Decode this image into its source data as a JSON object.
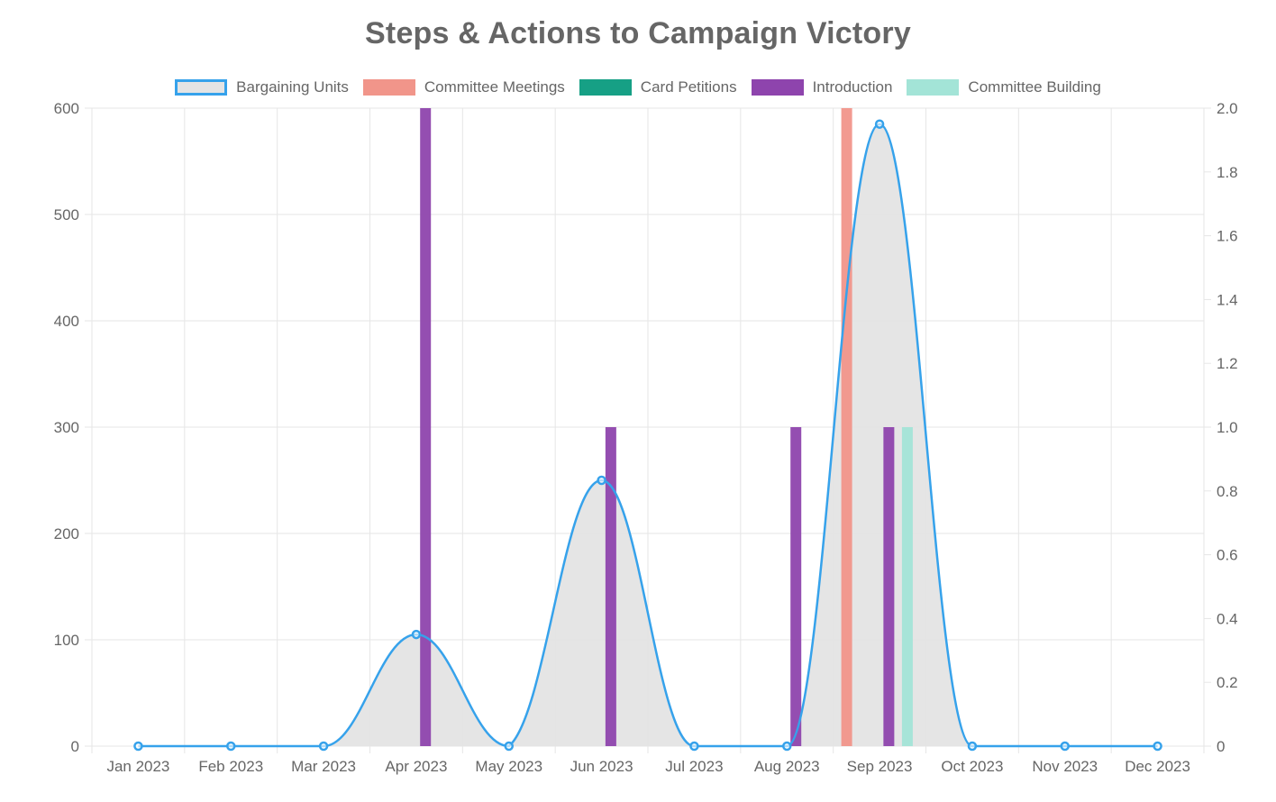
{
  "chart_data": {
    "type": "bar",
    "title": "Steps & Actions to Campaign Victory",
    "categories": [
      "Jan 2023",
      "Feb 2023",
      "Mar 2023",
      "Apr 2023",
      "May 2023",
      "Jun 2023",
      "Jul 2023",
      "Aug 2023",
      "Sep 2023",
      "Oct 2023",
      "Nov 2023",
      "Dec 2023"
    ],
    "y_left": {
      "ticks": [
        "0",
        "100",
        "200",
        "300",
        "400",
        "500",
        "600"
      ],
      "ylim": [
        0,
        600
      ]
    },
    "y_right": {
      "ticks": [
        "0",
        "0.2",
        "0.4",
        "0.6",
        "0.8",
        "1.0",
        "1.2",
        "1.4",
        "1.6",
        "1.8",
        "2.0"
      ],
      "ylim": [
        0,
        2
      ]
    },
    "grid": true,
    "legend_position": "top-center",
    "series": [
      {
        "name": "Bargaining Units",
        "kind": "area-line",
        "axis": "left",
        "color": "#36A2EB",
        "fill": "#E4E4E4",
        "points": [
          {
            "x": "2023-01-01",
            "y": 0
          },
          {
            "x": "2023-02-01",
            "y": 0
          },
          {
            "x": "2023-03-01",
            "y": 0
          },
          {
            "x": "2023-04-01",
            "y": 105
          },
          {
            "x": "2023-05-01",
            "y": 0
          },
          {
            "x": "2023-06-01",
            "y": 250
          },
          {
            "x": "2023-07-01",
            "y": 0
          },
          {
            "x": "2023-08-01",
            "y": 0
          },
          {
            "x": "2023-09-01",
            "y": 585
          },
          {
            "x": "2023-10-01",
            "y": 0
          },
          {
            "x": "2023-11-01",
            "y": 0
          },
          {
            "x": "2023-12-01",
            "y": 0
          }
        ]
      },
      {
        "name": "Committee Meetings",
        "kind": "bar",
        "axis": "right",
        "color": "#F1958A",
        "points": [
          {
            "x": "2023-08-21",
            "y": 2
          }
        ]
      },
      {
        "name": "Card Petitions",
        "kind": "bar",
        "axis": "right",
        "color": "#16A085",
        "points": []
      },
      {
        "name": "Introduction",
        "kind": "bar",
        "axis": "right",
        "color": "#8E44AD",
        "points": [
          {
            "x": "2023-04-04",
            "y": 2
          },
          {
            "x": "2023-06-04",
            "y": 1
          },
          {
            "x": "2023-08-04",
            "y": 1
          },
          {
            "x": "2023-09-04",
            "y": 1
          }
        ]
      },
      {
        "name": "Committee Building",
        "kind": "bar",
        "axis": "right",
        "color": "#A3E4D7",
        "points": [
          {
            "x": "2023-09-10",
            "y": 1
          }
        ]
      }
    ]
  }
}
